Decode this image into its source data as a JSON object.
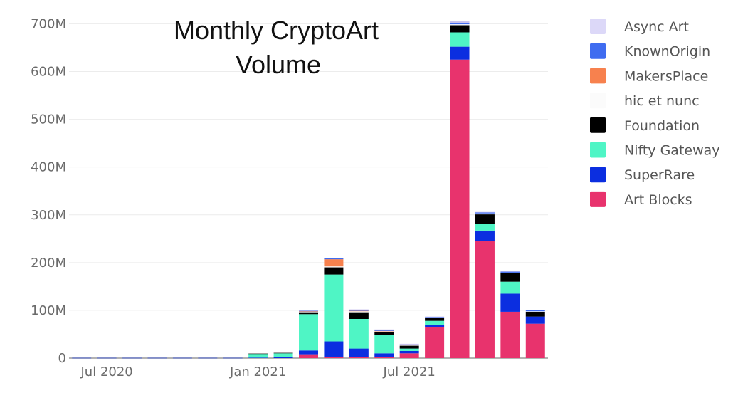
{
  "chart_data": {
    "type": "bar",
    "stacked": true,
    "title_lines": [
      "Monthly CryptoArt",
      "Volume"
    ],
    "xlabel": "",
    "ylabel": "",
    "ylim": [
      0,
      720000000
    ],
    "yticks": [
      0,
      100000000,
      200000000,
      300000000,
      400000000,
      500000000,
      600000000,
      700000000
    ],
    "ytick_labels": [
      "0",
      "100M",
      "200M",
      "300M",
      "400M",
      "500M",
      "600M",
      "700M"
    ],
    "grid": true,
    "legend_position": "top-right",
    "categories": [
      "2020-06",
      "2020-07",
      "2020-08",
      "2020-09",
      "2020-10",
      "2020-11",
      "2020-12",
      "2021-01",
      "2021-02",
      "2021-03",
      "2021-04",
      "2021-05",
      "2021-06",
      "2021-07",
      "2021-08",
      "2021-09",
      "2021-10",
      "2021-11",
      "2021-12"
    ],
    "xtick_labels": [
      {
        "category": "2020-07",
        "label": "Jul 2020"
      },
      {
        "category": "2021-01",
        "label": "Jan 2021"
      },
      {
        "category": "2021-07",
        "label": "Jul 2021"
      }
    ],
    "series": [
      {
        "name": "Art Blocks",
        "color": "#e8336d",
        "values": [
          0,
          0,
          0,
          0,
          0,
          0,
          0,
          0,
          0,
          8,
          3,
          2,
          3,
          10,
          65,
          625,
          245,
          97,
          72
        ]
      },
      {
        "name": "SuperRare",
        "color": "#0b2ee0",
        "values": [
          0.5,
          0.5,
          0.5,
          0.5,
          0.5,
          0.5,
          0.5,
          1,
          2,
          8,
          32,
          18,
          7,
          5,
          5,
          27,
          22,
          38,
          15
        ]
      },
      {
        "name": "Nifty Gateway",
        "color": "#4ff5c5",
        "values": [
          0,
          0,
          0,
          0,
          0,
          0,
          0,
          8,
          8,
          76,
          140,
          62,
          38,
          5,
          8,
          30,
          14,
          25,
          0
        ]
      },
      {
        "name": "Foundation",
        "color": "#000000",
        "values": [
          0,
          0,
          0,
          0,
          0,
          0,
          0,
          0.5,
          1,
          4,
          15,
          14,
          6,
          6,
          6,
          15,
          20,
          18,
          10
        ]
      },
      {
        "name": "hic et nunc",
        "color": "#fbfbfb",
        "values": [
          0,
          0,
          0,
          0,
          0,
          0,
          0,
          0,
          0,
          1,
          2,
          2,
          2,
          1,
          1,
          2,
          2,
          1,
          1
        ]
      },
      {
        "name": "MakersPlace",
        "color": "#f7814e",
        "values": [
          0,
          0,
          0,
          0,
          0,
          0,
          0,
          0,
          0,
          1,
          15,
          1,
          1,
          0,
          0,
          0,
          0,
          0,
          0
        ]
      },
      {
        "name": "KnownOrigin",
        "color": "#3f6cf0",
        "values": [
          0,
          0,
          0,
          0,
          0,
          0,
          0,
          0,
          0,
          1,
          2,
          2,
          2,
          1,
          1,
          3,
          2,
          2,
          2
        ]
      },
      {
        "name": "Async Art",
        "color": "#c9c3ef",
        "values": [
          0,
          0,
          0,
          0,
          0,
          0,
          0,
          0,
          0,
          1,
          1,
          1,
          1,
          2,
          1,
          3,
          1,
          2,
          1
        ]
      }
    ],
    "value_unit": "M"
  },
  "legend": [
    {
      "name": "Async Art",
      "color": "#dcd8f8",
      "faded": true
    },
    {
      "name": "KnownOrigin",
      "color": "#3f6cf0"
    },
    {
      "name": "MakersPlace",
      "color": "#f7814e"
    },
    {
      "name": "hic et nunc",
      "color": "#fbfbfb"
    },
    {
      "name": "Foundation",
      "color": "#000000"
    },
    {
      "name": "Nifty Gateway",
      "color": "#4ff5c5"
    },
    {
      "name": "SuperRare",
      "color": "#0b2ee0"
    },
    {
      "name": "Art Blocks",
      "color": "#e8336d"
    }
  ]
}
